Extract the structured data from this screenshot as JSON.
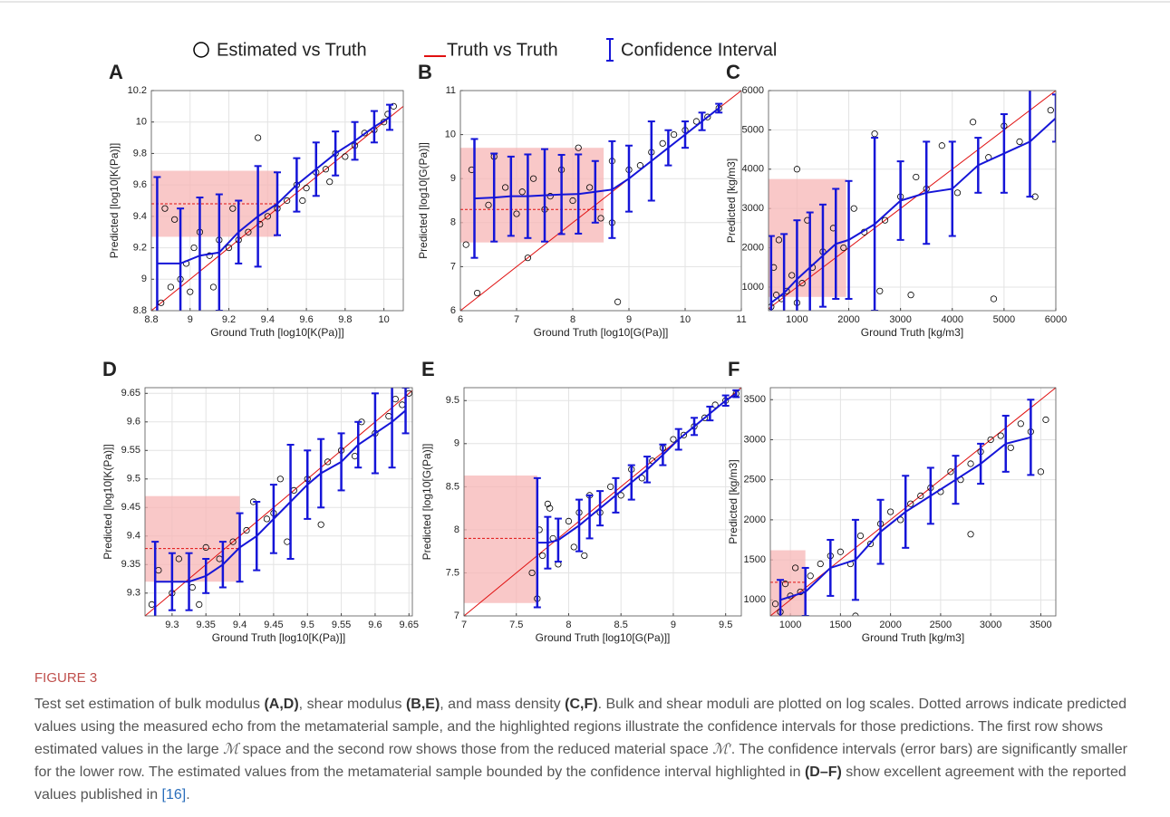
{
  "legend": [
    "Estimated vs Truth",
    "Truth vs Truth",
    "Confidence Interval"
  ],
  "figure": {
    "label": "FIGURE 3",
    "caption": [
      {
        "text": "Test set estimation of bulk modulus "
      },
      {
        "text": "(A,D)",
        "style": "bold"
      },
      {
        "text": ", shear modulus "
      },
      {
        "text": "(B,E)",
        "style": "bold"
      },
      {
        "text": ", and mass density "
      },
      {
        "text": "(C,F)",
        "style": "bold"
      },
      {
        "text": ". Bulk and shear moduli are plotted on log scales. Dotted arrows indicate predicted values using the measured echo from the metamaterial sample, and the highlighted regions illustrate the confidence intervals for those predictions. The first row shows estimated values in the large "
      },
      {
        "text": "ℳ",
        "style": "italic"
      },
      {
        "text": " space and the second row shows those from the reduced material space "
      },
      {
        "text": "ℳ′",
        "style": "italic"
      },
      {
        "text": ". The confidence intervals (error bars) are significantly smaller for the lower row. The estimated values from the metamaterial sample bounded by the confidence interval highlighted in "
      },
      {
        "text": "(D–F)",
        "style": "bold"
      },
      {
        "text": " show excellent agreement with the reported values published in "
      },
      {
        "text": "[16]",
        "style": "link"
      },
      {
        "text": "."
      }
    ]
  },
  "chart_data": [
    {
      "type": "scatter",
      "label": "A",
      "x_label": "Ground Truth [log10[K(Pa)]]",
      "y_label": "Predicted [log10[K(Pa)]]",
      "xlim": [
        8.8,
        10.1
      ],
      "ylim": [
        8.8,
        10.2
      ],
      "xticks": [
        8.8,
        9,
        9.2,
        9.4,
        9.6,
        9.8,
        10
      ],
      "yticks": [
        8.8,
        9,
        9.2,
        9.4,
        9.6,
        9.8,
        10,
        10.2
      ],
      "grid": true,
      "point_color": "#000000",
      "identity_color": "#e01010",
      "trend_color": "#1515d8",
      "highlight_color": "#f7b5b5",
      "points": {
        "x": [
          8.85,
          8.87,
          8.9,
          8.92,
          8.95,
          8.98,
          9.0,
          9.02,
          9.05,
          9.1,
          9.12,
          9.15,
          9.2,
          9.22,
          9.25,
          9.3,
          9.35,
          9.36,
          9.4,
          9.45,
          9.5,
          9.55,
          9.6,
          9.65,
          9.7,
          9.75,
          9.8,
          9.85,
          9.9,
          9.95,
          10.0,
          10.02,
          10.05,
          9.58,
          9.72
        ],
        "y": [
          8.85,
          9.45,
          8.95,
          9.38,
          9.0,
          9.1,
          8.92,
          9.2,
          9.3,
          9.15,
          8.95,
          9.25,
          9.2,
          9.45,
          9.25,
          9.3,
          9.9,
          9.35,
          9.4,
          9.45,
          9.5,
          9.6,
          9.58,
          9.68,
          9.7,
          9.8,
          9.78,
          9.85,
          9.93,
          9.95,
          10.0,
          10.05,
          10.1,
          9.5,
          9.62
        ]
      },
      "trend": {
        "x": [
          8.83,
          8.95,
          9.05,
          9.15,
          9.25,
          9.35,
          9.45,
          9.55,
          9.65,
          9.75,
          9.85,
          9.95,
          10.03
        ],
        "y": [
          9.1,
          9.1,
          9.15,
          9.17,
          9.3,
          9.4,
          9.48,
          9.6,
          9.7,
          9.8,
          9.88,
          9.97,
          10.03
        ],
        "err": [
          0.55,
          0.35,
          0.37,
          0.37,
          0.2,
          0.32,
          0.2,
          0.17,
          0.17,
          0.14,
          0.12,
          0.1,
          0.08
        ]
      },
      "highlight": {
        "x": [
          8.8,
          9.45
        ],
        "y": [
          9.27,
          9.69
        ],
        "estimate": 9.48
      }
    },
    {
      "type": "scatter",
      "label": "B",
      "x_label": "Ground Truth [log10[G(Pa)]]",
      "y_label": "Predicted [log10[G(Pa)]]",
      "xlim": [
        6,
        11
      ],
      "ylim": [
        6,
        11
      ],
      "xticks": [
        6,
        7,
        8,
        9,
        10,
        11
      ],
      "yticks": [
        6,
        7,
        8,
        9,
        10,
        11
      ],
      "grid": true,
      "point_color": "#000000",
      "identity_color": "#e01010",
      "trend_color": "#1515d8",
      "highlight_color": "#f7b5b5",
      "points": {
        "x": [
          6.1,
          6.2,
          6.3,
          6.5,
          6.6,
          6.8,
          7.0,
          7.1,
          7.3,
          7.5,
          7.6,
          7.8,
          8.0,
          8.1,
          8.3,
          8.5,
          8.7,
          8.8,
          9.0,
          9.2,
          9.4,
          9.6,
          9.8,
          10.0,
          10.2,
          10.4,
          10.6,
          7.2,
          8.7
        ],
        "y": [
          7.5,
          9.2,
          6.4,
          8.4,
          9.5,
          8.8,
          8.2,
          8.7,
          9.0,
          8.3,
          8.6,
          9.2,
          8.5,
          9.7,
          8.8,
          8.1,
          9.4,
          6.2,
          9.2,
          9.3,
          9.6,
          9.8,
          10.0,
          10.1,
          10.3,
          10.4,
          10.6,
          7.2,
          8.0
        ]
      },
      "trend": {
        "x": [
          6.25,
          6.6,
          6.9,
          7.2,
          7.5,
          7.8,
          8.1,
          8.4,
          8.7,
          9.0,
          9.4,
          9.7,
          10.0,
          10.3,
          10.6
        ],
        "y": [
          8.55,
          8.57,
          8.6,
          8.6,
          8.62,
          8.64,
          8.65,
          8.7,
          8.75,
          9.0,
          9.4,
          9.7,
          10.0,
          10.3,
          10.6
        ],
        "err": [
          1.35,
          1.0,
          0.9,
          0.95,
          1.05,
          0.9,
          0.9,
          0.7,
          1.1,
          0.75,
          0.9,
          0.4,
          0.3,
          0.2,
          0.1
        ]
      },
      "highlight": {
        "x": [
          6,
          8.55
        ],
        "y": [
          7.55,
          9.7
        ],
        "estimate": 8.3
      }
    },
    {
      "type": "scatter",
      "label": "C",
      "x_label": "Ground Truth [kg/m3]",
      "y_label": "Predicted [kg/m3]",
      "xlim": [
        450,
        6000
      ],
      "ylim": [
        400,
        6000
      ],
      "xticks": [
        1000,
        2000,
        3000,
        4000,
        5000,
        6000
      ],
      "yticks": [
        1000,
        2000,
        3000,
        4000,
        5000,
        6000
      ],
      "grid": true,
      "point_color": "#000000",
      "identity_color": "#e01010",
      "trend_color": "#1515d8",
      "highlight_color": "#f7b5b5",
      "points": {
        "x": [
          500,
          550,
          600,
          650,
          700,
          800,
          900,
          1000,
          1100,
          1200,
          1300,
          1500,
          1700,
          1900,
          2100,
          2300,
          2500,
          2700,
          3000,
          3200,
          3500,
          3800,
          4100,
          4400,
          4700,
          5000,
          5300,
          5600,
          5900,
          1000,
          2600,
          3300,
          4800
        ],
        "y": [
          500,
          1500,
          800,
          2200,
          700,
          900,
          1300,
          4000,
          1100,
          2700,
          1500,
          1900,
          2500,
          2000,
          3000,
          2400,
          4900,
          2700,
          3300,
          800,
          3500,
          4600,
          3400,
          5200,
          4300,
          5100,
          4700,
          3300,
          5500,
          600,
          900,
          3800,
          700
        ]
      },
      "trend": {
        "x": [
          500,
          750,
          1000,
          1250,
          1500,
          1750,
          2000,
          2500,
          3000,
          3500,
          4000,
          4500,
          5000,
          5500,
          6000
        ],
        "y": [
          600,
          850,
          1200,
          1500,
          1800,
          2100,
          2200,
          2600,
          3200,
          3400,
          3500,
          4100,
          4400,
          4700,
          5300
        ],
        "err": [
          1700,
          1500,
          1500,
          1400,
          1300,
          1400,
          1500,
          2200,
          1000,
          1300,
          1200,
          700,
          1000,
          1400,
          600
        ]
      },
      "highlight": {
        "x": [
          450,
          1950
        ],
        "y": [
          750,
          3750
        ]
      }
    },
    {
      "type": "scatter",
      "label": "D",
      "x_label": "Ground Truth [log10[K(Pa)]]",
      "y_label": "Predicted [log10[K(Pa)]]",
      "xlim": [
        9.26,
        9.655
      ],
      "ylim": [
        9.26,
        9.66
      ],
      "xticks": [
        9.3,
        9.35,
        9.4,
        9.45,
        9.5,
        9.55,
        9.6,
        9.65
      ],
      "yticks": [
        9.3,
        9.35,
        9.4,
        9.45,
        9.5,
        9.55,
        9.6,
        9.65
      ],
      "grid": true,
      "point_color": "#000000",
      "identity_color": "#e01010",
      "trend_color": "#1515d8",
      "highlight_color": "#f7b5b5",
      "points": {
        "x": [
          9.27,
          9.28,
          9.3,
          9.31,
          9.33,
          9.35,
          9.37,
          9.39,
          9.41,
          9.42,
          9.44,
          9.45,
          9.47,
          9.48,
          9.5,
          9.52,
          9.53,
          9.55,
          9.57,
          9.58,
          9.6,
          9.62,
          9.63,
          9.64,
          9.65,
          9.34,
          9.46
        ],
        "y": [
          9.28,
          9.34,
          9.3,
          9.36,
          9.31,
          9.38,
          9.36,
          9.39,
          9.41,
          9.46,
          9.43,
          9.44,
          9.39,
          9.48,
          9.5,
          9.42,
          9.53,
          9.55,
          9.54,
          9.6,
          9.58,
          9.61,
          9.64,
          9.63,
          9.65,
          9.28,
          9.5
        ]
      },
      "trend": {
        "x": [
          9.275,
          9.3,
          9.325,
          9.35,
          9.375,
          9.4,
          9.425,
          9.45,
          9.475,
          9.5,
          9.52,
          9.55,
          9.575,
          9.6,
          9.625,
          9.645
        ],
        "y": [
          9.32,
          9.32,
          9.32,
          9.33,
          9.35,
          9.38,
          9.4,
          9.43,
          9.46,
          9.49,
          9.51,
          9.53,
          9.56,
          9.58,
          9.6,
          9.62
        ],
        "err": [
          0.07,
          0.05,
          0.05,
          0.03,
          0.04,
          0.06,
          0.06,
          0.06,
          0.1,
          0.06,
          0.06,
          0.05,
          0.04,
          0.07,
          0.08,
          0.04
        ]
      },
      "highlight": {
        "x": [
          9.26,
          9.4
        ],
        "y": [
          9.32,
          9.47
        ],
        "estimate": 9.378
      }
    },
    {
      "type": "scatter",
      "label": "E",
      "x_label": "Ground Truth [log10[G(Pa)]]",
      "y_label": "Predicted [log10[G(Pa)]]",
      "xlim": [
        7,
        9.65
      ],
      "ylim": [
        7,
        9.65
      ],
      "xticks": [
        7,
        7.5,
        8,
        8.5,
        9,
        9.5
      ],
      "yticks": [
        7,
        7.5,
        8,
        8.5,
        9,
        9.5
      ],
      "grid": true,
      "point_color": "#000000",
      "identity_color": "#e01010",
      "trend_color": "#1515d8",
      "highlight_color": "#f7b5b5",
      "points": {
        "x": [
          7.65,
          7.7,
          7.72,
          7.75,
          7.8,
          7.85,
          7.9,
          8.0,
          8.05,
          8.1,
          8.2,
          8.3,
          8.4,
          8.5,
          8.6,
          8.7,
          8.8,
          8.9,
          9.0,
          9.1,
          9.2,
          9.3,
          9.4,
          9.5,
          9.6,
          7.82,
          8.15
        ],
        "y": [
          7.5,
          7.2,
          8.0,
          7.7,
          8.3,
          7.9,
          7.6,
          8.1,
          7.8,
          8.2,
          8.4,
          8.2,
          8.5,
          8.4,
          8.7,
          8.6,
          8.8,
          8.95,
          9.05,
          9.1,
          9.2,
          9.3,
          9.45,
          9.5,
          9.58,
          8.25,
          7.7
        ]
      },
      "trend": {
        "x": [
          7.7,
          7.8,
          7.9,
          8.1,
          8.2,
          8.3,
          8.45,
          8.6,
          8.75,
          8.9,
          9.05,
          9.2,
          9.35,
          9.5,
          9.6
        ],
        "y": [
          7.85,
          7.85,
          7.88,
          8.05,
          8.15,
          8.25,
          8.4,
          8.55,
          8.7,
          8.87,
          9.05,
          9.2,
          9.35,
          9.5,
          9.58
        ],
        "err": [
          0.75,
          0.3,
          0.25,
          0.3,
          0.25,
          0.2,
          0.2,
          0.2,
          0.15,
          0.12,
          0.12,
          0.1,
          0.08,
          0.06,
          0.04
        ]
      },
      "highlight": {
        "x": [
          7,
          7.7
        ],
        "y": [
          7.15,
          8.63
        ],
        "estimate": 7.9
      }
    },
    {
      "type": "scatter",
      "label": "F",
      "x_label": "Ground Truth [kg/m3]",
      "y_label": "Predicted [kg/m3]",
      "xlim": [
        800,
        3650
      ],
      "ylim": [
        800,
        3650
      ],
      "xticks": [
        1000,
        1500,
        2000,
        2500,
        3000,
        3500
      ],
      "yticks": [
        1000,
        1500,
        2000,
        2500,
        3000,
        3500
      ],
      "grid": true,
      "point_color": "#000000",
      "identity_color": "#e01010",
      "trend_color": "#1515d8",
      "highlight_color": "#f7b5b5",
      "points": {
        "x": [
          850,
          900,
          950,
          1000,
          1050,
          1100,
          1200,
          1300,
          1400,
          1500,
          1600,
          1700,
          1800,
          1900,
          2000,
          2100,
          2200,
          2300,
          2400,
          2500,
          2600,
          2700,
          2800,
          2900,
          3000,
          3100,
          3200,
          3300,
          3400,
          3500,
          3550,
          1650,
          2800
        ],
        "y": [
          950,
          850,
          1200,
          1050,
          1400,
          1100,
          1300,
          1450,
          1550,
          1600,
          1450,
          1800,
          1700,
          1950,
          2100,
          2000,
          2200,
          2300,
          2400,
          2350,
          2600,
          2500,
          2700,
          2850,
          3000,
          3050,
          2900,
          3200,
          3100,
          2600,
          3250,
          800,
          1820
        ]
      },
      "trend": {
        "x": [
          900,
          1150,
          1400,
          1650,
          1900,
          2150,
          2400,
          2650,
          2900,
          3150,
          3400
        ],
        "y": [
          1000,
          1100,
          1400,
          1500,
          1850,
          2100,
          2300,
          2500,
          2700,
          2950,
          3030
        ],
        "err": [
          250,
          300,
          350,
          500,
          400,
          450,
          350,
          300,
          250,
          350,
          470
        ]
      },
      "highlight": {
        "x": [
          800,
          1150
        ],
        "y": [
          800,
          1620
        ],
        "estimate": 1220
      }
    }
  ]
}
